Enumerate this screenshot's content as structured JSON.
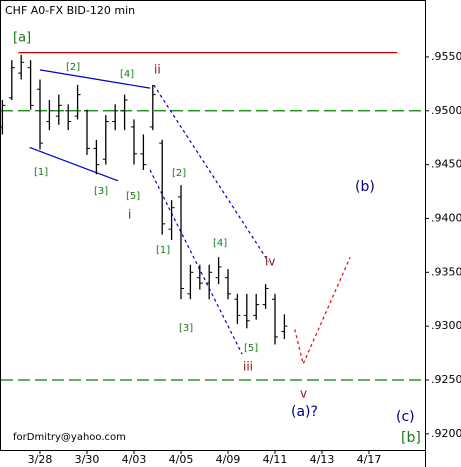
{
  "chart_data": {
    "type": "ohlc",
    "title": "CHF A0-FX BID-120 min",
    "categories": [
      null,
      null,
      null,
      null,
      "3/28",
      null,
      null,
      null,
      null,
      "3/30",
      null,
      null,
      null,
      null,
      "4/03",
      null,
      null,
      null,
      null,
      "4/05",
      null,
      null,
      null,
      null,
      "4/09",
      null,
      null,
      null,
      null,
      "4/11",
      null,
      null,
      null,
      null,
      "4/13",
      null,
      null,
      null,
      null,
      "4/17",
      null,
      null,
      null,
      null,
      null
    ],
    "open": [
      0.9485,
      0.9512,
      0.9535,
      0.954,
      0.952,
      0.949,
      0.9495,
      0.95,
      0.9495,
      0.95,
      0.9465,
      0.9455,
      0.949,
      0.95,
      0.9485,
      0.946,
      0.9485,
      0.947,
      0.939,
      0.942,
      0.933,
      0.9345,
      0.934,
      0.9345,
      0.9345,
      0.9325,
      0.931,
      0.931,
      0.932,
      0.9325,
      0.9295,
      null,
      null,
      null,
      null,
      null,
      null,
      null,
      null,
      null,
      null,
      null,
      null,
      null,
      null
    ],
    "high": [
      0.951,
      0.9547,
      0.9552,
      0.9547,
      0.9529,
      0.951,
      0.9515,
      0.9506,
      0.9524,
      0.9501,
      0.9473,
      0.9496,
      0.9506,
      0.9515,
      0.9492,
      0.9478,
      0.9524,
      0.9473,
      0.9417,
      0.9431,
      0.9357,
      0.9357,
      0.9357,
      0.9364,
      0.9353,
      0.933,
      0.933,
      0.933,
      0.9339,
      0.933,
      0.9311,
      null,
      null,
      null,
      null,
      null,
      null,
      null,
      null,
      null,
      null,
      null,
      null,
      null,
      null
    ],
    "low": [
      0.9478,
      0.951,
      0.9529,
      0.9501,
      0.9464,
      0.9482,
      0.9487,
      0.9482,
      0.9492,
      0.9459,
      0.9441,
      0.945,
      0.9482,
      0.9482,
      0.945,
      0.9445,
      0.9482,
      0.9385,
      0.938,
      0.9325,
      0.9325,
      0.9334,
      0.9325,
      0.9339,
      0.9325,
      0.9302,
      0.9298,
      0.9306,
      0.9316,
      0.9283,
      0.9288,
      null,
      null,
      null,
      null,
      null,
      null,
      null,
      null,
      null,
      null,
      null,
      null,
      null,
      null
    ],
    "close": [
      0.9505,
      0.954,
      0.9545,
      0.9505,
      0.947,
      0.95,
      0.9505,
      0.949,
      0.9515,
      0.9465,
      0.945,
      0.949,
      0.95,
      0.951,
      0.946,
      0.945,
      0.9515,
      0.9395,
      0.941,
      0.9335,
      0.935,
      0.934,
      0.935,
      0.9355,
      0.933,
      0.931,
      0.9305,
      0.932,
      0.9335,
      0.929,
      0.93,
      null,
      null,
      null,
      null,
      null,
      null,
      null,
      null,
      null,
      null,
      null,
      null,
      null,
      null
    ],
    "color": "#000000",
    "ylim": [
      0.9185,
      0.9601
    ],
    "yticks": [
      {
        "value": 0.955,
        "label": ".9550"
      },
      {
        "value": 0.95,
        "label": ".9500"
      },
      {
        "value": 0.945,
        "label": ".9450"
      },
      {
        "value": 0.94,
        "label": ".9400"
      },
      {
        "value": 0.935,
        "label": ".9350"
      },
      {
        "value": 0.93,
        "label": ".9300"
      },
      {
        "value": 0.925,
        "label": ".9250"
      },
      {
        "value": 0.92,
        "label": ".9200"
      }
    ],
    "hlines": [
      {
        "value": 0.95,
        "color": "#008000",
        "dash": true
      },
      {
        "value": 0.925,
        "color": "#008000",
        "dash": true
      }
    ],
    "trendlines": [
      {
        "color": "#cc0000",
        "dash": false,
        "points": [
          [
            1.7,
            0.9554
          ],
          [
            42,
            0.9554
          ]
        ]
      },
      {
        "color": "#0000cc",
        "dash": false,
        "points": [
          [
            4,
            0.9538
          ],
          [
            15.7,
            0.9521
          ]
        ]
      },
      {
        "color": "#0000cc",
        "dash": false,
        "points": [
          [
            2.9,
            0.9466
          ],
          [
            12.3,
            0.9435
          ]
        ]
      },
      {
        "color": "#0000cc",
        "dash": true,
        "points": [
          [
            16.1,
            0.9524
          ],
          [
            28.3,
            0.936
          ]
        ]
      },
      {
        "color": "#0000cc",
        "dash": true,
        "points": [
          [
            15.7,
            0.9445
          ],
          [
            25.5,
            0.9274
          ]
        ]
      },
      {
        "color": "#ee0000",
        "dash": true,
        "points": [
          [
            31.1,
            0.9297
          ],
          [
            32,
            0.9265
          ],
          [
            37,
            0.9364
          ]
        ]
      }
    ],
    "annotations": [
      "[a]",
      "[2]",
      "[4]",
      "ii",
      "[1]",
      "[3]",
      "[5]",
      "i",
      "[2]",
      "[1]",
      "[4]",
      "iv",
      "[3]",
      "[5]",
      "iii",
      "v",
      "(b)",
      "(a)?",
      "(c)",
      "[b]",
      "forDmitry@yahoo.com"
    ]
  }
}
